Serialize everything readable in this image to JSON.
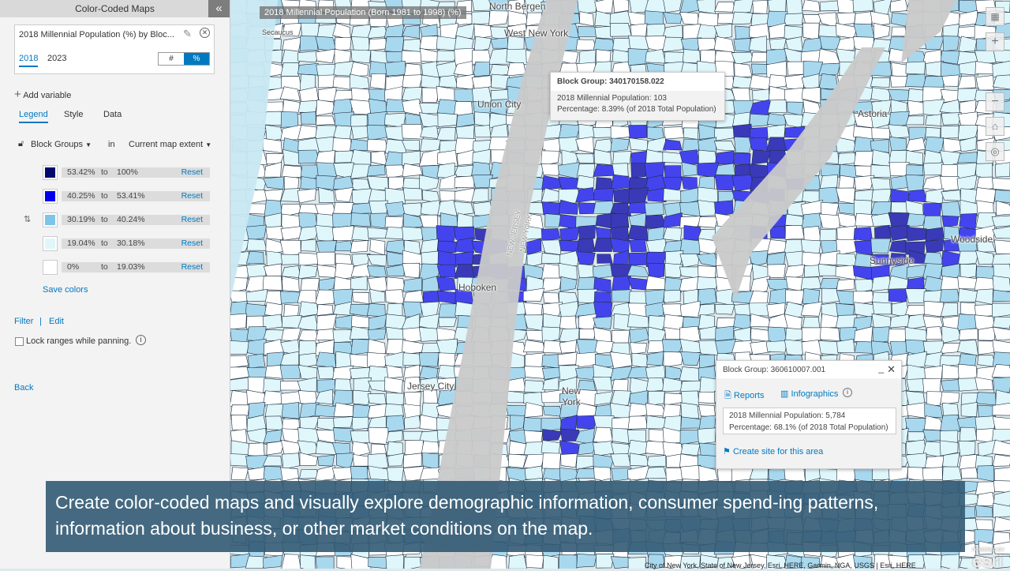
{
  "panel": {
    "title": "Color-Coded Maps",
    "collapse_icon": "double-chevron-left",
    "variable": {
      "title": "2018 Millennial Population (%) by Bloc...",
      "years": [
        "2018",
        "2023"
      ],
      "selected_year": "2018",
      "toggle": [
        "#",
        "%"
      ],
      "selected_toggle": "%"
    },
    "add_variable": "Add variable",
    "tabs": [
      "Legend",
      "Style",
      "Data"
    ],
    "selected_tab": "Legend",
    "geography": "Block Groups",
    "in": "in",
    "extent": "Current map extent",
    "legend": [
      {
        "from": "53.42%",
        "to_word": "to",
        "to": "100%",
        "color": "#000a6e",
        "reset": "Reset"
      },
      {
        "from": "40.25%",
        "to_word": "to",
        "to": "53.41%",
        "color": "#0000f0",
        "reset": "Reset"
      },
      {
        "from": "30.19%",
        "to_word": "to",
        "to": "40.24%",
        "color": "#7cc4ea",
        "reset": "Reset"
      },
      {
        "from": "19.04%",
        "to_word": "to",
        "to": "30.18%",
        "color": "#dff6fb",
        "reset": "Reset"
      },
      {
        "from": "0%",
        "to_word": "to",
        "to": "19.03%",
        "color": "#ffffff",
        "reset": "Reset"
      }
    ],
    "save_colors": "Save colors",
    "filter": "Filter",
    "sep": "|",
    "edit": "Edit",
    "lock_label": "Lock ranges while panning.",
    "lock_checked": false,
    "back": "Back"
  },
  "map": {
    "title": "2018 Millennial Population (Born 1981 to 1998) (%)",
    "labels": [
      "North Bergen",
      "West New York",
      "Secaucus",
      "Union City",
      "Hoboken",
      "Jersey City",
      "New York",
      "Astoria",
      "Woodside",
      "Sunnyside",
      "NEW JERSEY",
      "NEW YORK"
    ],
    "popup1": {
      "title": "Block Group: 340170158.022",
      "line1": "2018 Millennial Population:  103",
      "line2": "Percentage:  8.39% (of 2018 Total Population)"
    },
    "popup2": {
      "title": "Block Group: 360610007.001",
      "reports": "Reports",
      "infographics": "Infographics",
      "line1": "2018 Millennial Population:  5,784",
      "line2": "Percentage:  68.1%  (of 2018 Total Population)",
      "create_site": "Create site for this area"
    },
    "attribution": "City of New York, State of New Jersey, Esri, HERE, Garmin, NGA, USGS | Esri, HERE",
    "logo": "POWERED BY esri"
  },
  "caption": "Create color-coded maps and visually explore demographic information, consumer spend-ing patterns, information about business, or other market conditions on the map."
}
